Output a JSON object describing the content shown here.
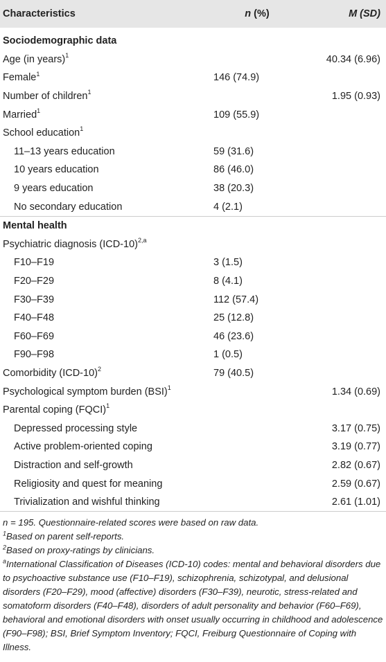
{
  "header": {
    "characteristics": "Characteristics",
    "n_label": "n",
    "n_suffix": " (%)",
    "m_label": "M",
    "m_suffix": " (SD)"
  },
  "rows": [
    {
      "label": "Sociodemographic data",
      "sup": "",
      "n": "",
      "m": "",
      "type": "section"
    },
    {
      "label": "Age (in years)",
      "sup": "1",
      "n": "",
      "m": "40.34 (6.96)",
      "type": "row"
    },
    {
      "label": "Female",
      "sup": "1",
      "n": "146 (74.9)",
      "m": "",
      "type": "row"
    },
    {
      "label": "Number of children",
      "sup": "1",
      "n": "",
      "m": "1.95 (0.93)",
      "type": "row"
    },
    {
      "label": "Married",
      "sup": "1",
      "n": "109 (55.9)",
      "m": "",
      "type": "row"
    },
    {
      "label": "School education",
      "sup": "1",
      "n": "",
      "m": "",
      "type": "row"
    },
    {
      "label": "11–13 years education",
      "sup": "",
      "n": "59 (31.6)",
      "m": "",
      "type": "sub"
    },
    {
      "label": "10 years education",
      "sup": "",
      "n": "86 (46.0)",
      "m": "",
      "type": "sub"
    },
    {
      "label": "9 years education",
      "sup": "",
      "n": "38 (20.3)",
      "m": "",
      "type": "sub"
    },
    {
      "label": "No secondary education",
      "sup": "",
      "n": "4 (2.1)",
      "m": "",
      "type": "sub"
    },
    {
      "label": "Mental health",
      "sup": "",
      "n": "",
      "m": "",
      "type": "section"
    },
    {
      "label": "Psychiatric diagnosis (ICD-10)",
      "sup": "2,a",
      "n": "",
      "m": "",
      "type": "row"
    },
    {
      "label": "F10–F19",
      "sup": "",
      "n": "3 (1.5)",
      "m": "",
      "type": "sub"
    },
    {
      "label": "F20–F29",
      "sup": "",
      "n": "8 (4.1)",
      "m": "",
      "type": "sub"
    },
    {
      "label": "F30–F39",
      "sup": "",
      "n": "112 (57.4)",
      "m": "",
      "type": "sub"
    },
    {
      "label": "F40–F48",
      "sup": "",
      "n": "25 (12.8)",
      "m": "",
      "type": "sub"
    },
    {
      "label": "F60–F69",
      "sup": "",
      "n": "46 (23.6)",
      "m": "",
      "type": "sub"
    },
    {
      "label": "F90–F98",
      "sup": "",
      "n": "1 (0.5)",
      "m": "",
      "type": "sub"
    },
    {
      "label": "Comorbidity (ICD-10)",
      "sup": "2",
      "n": "79 (40.5)",
      "m": "",
      "type": "row"
    },
    {
      "label": "Psychological symptom burden (BSI)",
      "sup": "1",
      "n": "",
      "m": "1.34 (0.69)",
      "type": "row"
    },
    {
      "label": "Parental coping (FQCI)",
      "sup": "1",
      "n": "",
      "m": "",
      "type": "row"
    },
    {
      "label": "Depressed processing style",
      "sup": "",
      "n": "",
      "m": "3.17 (0.75)",
      "type": "sub"
    },
    {
      "label": "Active problem-oriented coping",
      "sup": "",
      "n": "",
      "m": "3.19 (0.77)",
      "type": "sub"
    },
    {
      "label": "Distraction and self-growth",
      "sup": "",
      "n": "",
      "m": "2.82 (0.67)",
      "type": "sub"
    },
    {
      "label": "Religiosity and quest for meaning",
      "sup": "",
      "n": "",
      "m": "2.59 (0.67)",
      "type": "sub"
    },
    {
      "label": "Trivialization and wishful thinking",
      "sup": "",
      "n": "",
      "m": "2.61 (1.01)",
      "type": "sub"
    }
  ],
  "notes": {
    "n_note": "n = 195. Questionnaire-related scores were based on raw data.",
    "fn1_mark": "1",
    "fn1": "Based on parent self-reports.",
    "fn2_mark": "2",
    "fn2": "Based on proxy-ratings by clinicians.",
    "fna_mark": "a",
    "fna": "International Classification of Diseases (ICD-10) codes: mental and behavioral disorders due to psychoactive substance use (F10–F19), schizophrenia, schizotypal, and delusional disorders (F20–F29), mood (affective) disorders (F30–F39), neurotic, stress-related and somatoform disorders (F40–F48), disorders of adult personality and behavior (F60–F69), behavioral and emotional disorders with onset usually occurring in childhood and adolescence (F90–F98); BSI, Brief Symptom Inventory; FQCI, Freiburg Questionnaire of Coping with Illness."
  }
}
